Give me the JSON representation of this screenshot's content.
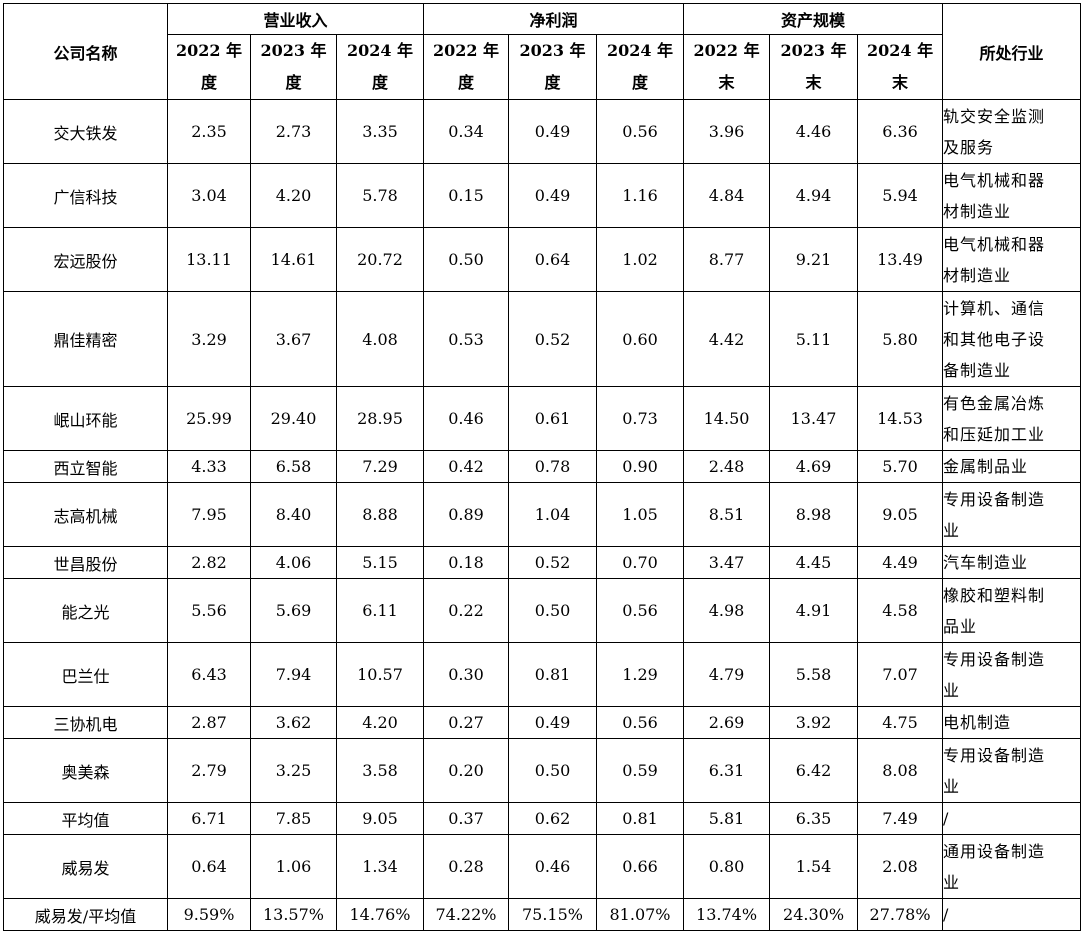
{
  "header": {
    "company_col": "公司名称",
    "industry_col": "所处行业",
    "groups": [
      {
        "label": "营业收入",
        "subs": [
          [
            "2022 年",
            "度"
          ],
          [
            "2023 年",
            "度"
          ],
          [
            "2024 年",
            "度"
          ]
        ]
      },
      {
        "label": "净利润",
        "subs": [
          [
            "2022 年",
            "度"
          ],
          [
            "2023 年",
            "度"
          ],
          [
            "2024 年",
            "度"
          ]
        ]
      },
      {
        "label": "资产规模",
        "subs": [
          [
            "2022 年",
            "末"
          ],
          [
            "2023 年",
            "末"
          ],
          [
            "2024 年",
            "末"
          ]
        ]
      }
    ]
  },
  "rows": [
    {
      "name": "交大铁发",
      "values": [
        "2.35",
        "2.73",
        "3.35",
        "0.34",
        "0.49",
        "0.56",
        "3.96",
        "4.46",
        "6.36"
      ],
      "industry": [
        "轨交安全监测",
        "及服务"
      ]
    },
    {
      "name": "广信科技",
      "values": [
        "3.04",
        "4.20",
        "5.78",
        "0.15",
        "0.49",
        "1.16",
        "4.84",
        "4.94",
        "5.94"
      ],
      "industry": [
        "电气机械和器",
        "材制造业"
      ]
    },
    {
      "name": "宏远股份",
      "values": [
        "13.11",
        "14.61",
        "20.72",
        "0.50",
        "0.64",
        "1.02",
        "8.77",
        "9.21",
        "13.49"
      ],
      "industry": [
        "电气机械和器",
        "材制造业"
      ]
    },
    {
      "name": "鼎佳精密",
      "values": [
        "3.29",
        "3.67",
        "4.08",
        "0.53",
        "0.52",
        "0.60",
        "4.42",
        "5.11",
        "5.80"
      ],
      "industry": [
        "计算机、通信",
        "和其他电子设",
        "备制造业"
      ]
    },
    {
      "name": "岷山环能",
      "values": [
        "25.99",
        "29.40",
        "28.95",
        "0.46",
        "0.61",
        "0.73",
        "14.50",
        "13.47",
        "14.53"
      ],
      "industry": [
        "有色金属冶炼",
        "和压延加工业"
      ]
    },
    {
      "name": "西立智能",
      "values": [
        "4.33",
        "6.58",
        "7.29",
        "0.42",
        "0.78",
        "0.90",
        "2.48",
        "4.69",
        "5.70"
      ],
      "industry": [
        "金属制品业"
      ]
    },
    {
      "name": "志高机械",
      "values": [
        "7.95",
        "8.40",
        "8.88",
        "0.89",
        "1.04",
        "1.05",
        "8.51",
        "8.98",
        "9.05"
      ],
      "industry": [
        "专用设备制造",
        "业"
      ]
    },
    {
      "name": "世昌股份",
      "values": [
        "2.82",
        "4.06",
        "5.15",
        "0.18",
        "0.52",
        "0.70",
        "3.47",
        "4.45",
        "4.49"
      ],
      "industry": [
        "汽车制造业"
      ]
    },
    {
      "name": "能之光",
      "values": [
        "5.56",
        "5.69",
        "6.11",
        "0.22",
        "0.50",
        "0.56",
        "4.98",
        "4.91",
        "4.58"
      ],
      "industry": [
        "橡胶和塑料制",
        "品业"
      ]
    },
    {
      "name": "巴兰仕",
      "values": [
        "6.43",
        "7.94",
        "10.57",
        "0.30",
        "0.81",
        "1.29",
        "4.79",
        "5.58",
        "7.07"
      ],
      "industry": [
        "专用设备制造",
        "业"
      ]
    },
    {
      "name": "三协机电",
      "values": [
        "2.87",
        "3.62",
        "4.20",
        "0.27",
        "0.49",
        "0.56",
        "2.69",
        "3.92",
        "4.75"
      ],
      "industry": [
        "电机制造"
      ]
    },
    {
      "name": "奥美森",
      "values": [
        "2.79",
        "3.25",
        "3.58",
        "0.20",
        "0.50",
        "0.59",
        "6.31",
        "6.42",
        "8.08"
      ],
      "industry": [
        "专用设备制造",
        "业"
      ]
    },
    {
      "name": "平均值",
      "values": [
        "6.71",
        "7.85",
        "9.05",
        "0.37",
        "0.62",
        "0.81",
        "5.81",
        "6.35",
        "7.49"
      ],
      "industry": [
        "/"
      ]
    },
    {
      "name": "威易发",
      "values": [
        "0.64",
        "1.06",
        "1.34",
        "0.28",
        "0.46",
        "0.66",
        "0.80",
        "1.54",
        "2.08"
      ],
      "industry": [
        "通用设备制造",
        "业"
      ]
    },
    {
      "name": "威易发/平均值",
      "values": [
        "9.59%",
        "13.57%",
        "14.76%",
        "74.22%",
        "75.15%",
        "81.07%",
        "13.74%",
        "24.30%",
        "27.78%"
      ],
      "industry": [
        "/"
      ]
    }
  ]
}
